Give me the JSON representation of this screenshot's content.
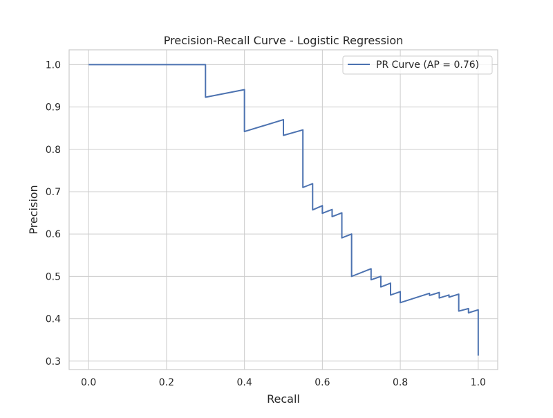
{
  "chart_data": {
    "type": "line",
    "title": "Precision-Recall Curve - Logistic Regression",
    "xlabel": "Recall",
    "ylabel": "Precision",
    "xlim": [
      -0.05,
      1.05
    ],
    "ylim": [
      0.28,
      1.035
    ],
    "x_ticks": [
      0.0,
      0.2,
      0.4,
      0.6,
      0.8,
      1.0
    ],
    "y_ticks": [
      0.3,
      0.4,
      0.5,
      0.6,
      0.7,
      0.8,
      0.9,
      1.0
    ],
    "x_tick_labels": [
      "0.0",
      "0.2",
      "0.4",
      "0.6",
      "0.8",
      "1.0"
    ],
    "y_tick_labels": [
      "0.3",
      "0.4",
      "0.5",
      "0.6",
      "0.7",
      "0.8",
      "0.9",
      "1.0"
    ],
    "grid": true,
    "legend_position": "upper right",
    "series": [
      {
        "name": "PR Curve (AP = 0.76)",
        "color": "#4c72b0",
        "x": [
          0.0,
          0.3,
          0.3,
          0.4,
          0.4,
          0.5,
          0.5,
          0.55,
          0.55,
          0.575,
          0.575,
          0.6,
          0.6,
          0.625,
          0.625,
          0.65,
          0.65,
          0.675,
          0.675,
          0.725,
          0.725,
          0.75,
          0.75,
          0.775,
          0.775,
          0.8,
          0.8,
          0.875,
          0.875,
          0.9,
          0.9,
          0.925,
          0.925,
          0.95,
          0.95,
          0.975,
          0.975,
          1.0,
          1.0
        ],
        "y": [
          1.0,
          1.0,
          0.923,
          0.941,
          0.842,
          0.87,
          0.833,
          0.846,
          0.71,
          0.719,
          0.657,
          0.667,
          0.649,
          0.658,
          0.641,
          0.65,
          0.591,
          0.6,
          0.5,
          0.518,
          0.492,
          0.5,
          0.475,
          0.484,
          0.456,
          0.464,
          0.438,
          0.46,
          0.455,
          0.462,
          0.449,
          0.456,
          0.451,
          0.458,
          0.418,
          0.424,
          0.414,
          0.421,
          0.313
        ]
      }
    ]
  }
}
